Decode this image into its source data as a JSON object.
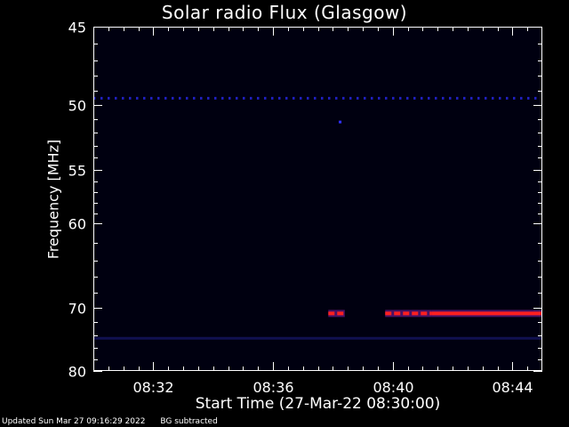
{
  "chart_data": {
    "type": "heatmap",
    "title": "Solar radio Flux (Glasgow)",
    "xlabel": "Start Time (27-Mar-22 08:30:00)",
    "ylabel": "Frequency [MHz]",
    "x_range_minutes": [
      0,
      15
    ],
    "y_range_mhz": [
      45,
      80
    ],
    "x_ticks": [
      {
        "minute": 2,
        "label": "08:32"
      },
      {
        "minute": 6,
        "label": "08:36"
      },
      {
        "minute": 10,
        "label": "08:40"
      },
      {
        "minute": 14,
        "label": "08:44"
      }
    ],
    "y_ticks": [
      {
        "mhz": 45,
        "label": "45"
      },
      {
        "mhz": 50,
        "label": "50"
      },
      {
        "mhz": 55,
        "label": "55"
      },
      {
        "mhz": 60,
        "label": "60"
      },
      {
        "mhz": 70,
        "label": "70"
      },
      {
        "mhz": 80,
        "label": "80"
      }
    ],
    "background_color": "#000010",
    "features": [
      {
        "name": "persistent-band-49.5MHz",
        "mhz": 49.5,
        "start_min": 0.0,
        "end_min": 15.0,
        "color": "#2020c0",
        "intensity": "low",
        "dashed": true
      },
      {
        "name": "faint-band-74MHz",
        "mhz": 74.5,
        "start_min": 0.0,
        "end_min": 15.0,
        "color": "#101050",
        "intensity": "very-low",
        "dashed": false
      },
      {
        "name": "spot-51MHz",
        "mhz": 51.2,
        "start_min": 8.2,
        "end_min": 8.25,
        "color": "#3030ff",
        "intensity": "low",
        "dashed": false
      },
      {
        "name": "burst-70.8MHz-a",
        "mhz": 70.8,
        "start_min": 7.85,
        "end_min": 8.4,
        "color": "#ff2020",
        "intensity": "high",
        "dashed": true
      },
      {
        "name": "burst-70.8MHz-b",
        "mhz": 70.8,
        "start_min": 9.75,
        "end_min": 11.3,
        "color": "#ff2020",
        "intensity": "high",
        "dashed": true
      },
      {
        "name": "burst-70.8MHz-c",
        "mhz": 70.8,
        "start_min": 11.3,
        "end_min": 15.0,
        "color": "#ff2020",
        "intensity": "high",
        "dashed": false
      }
    ]
  },
  "footer": {
    "updated": "Updated Sun Mar 27 09:16:29 2022",
    "note": "BG subtracted"
  }
}
